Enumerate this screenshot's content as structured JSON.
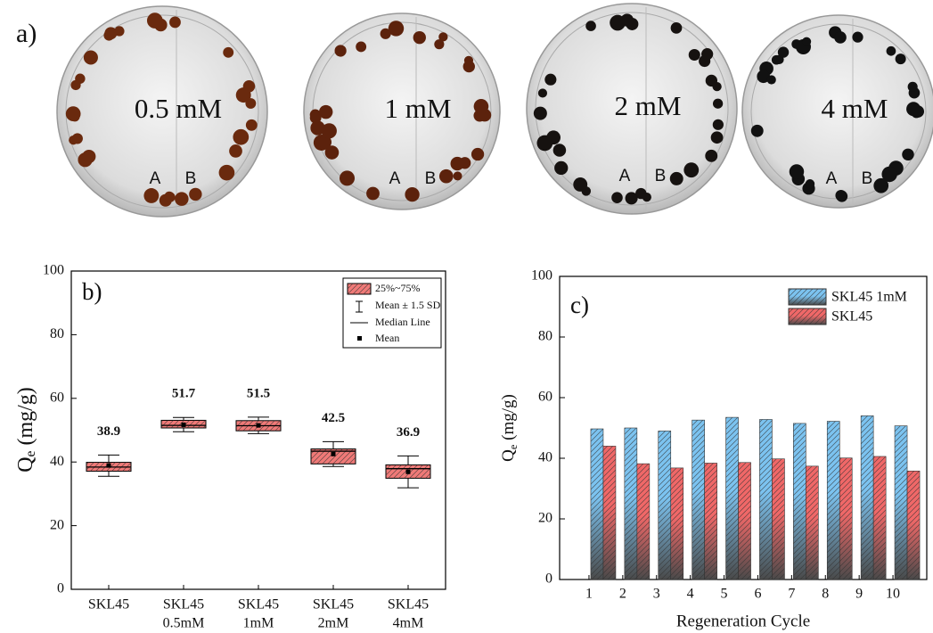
{
  "panel_a": {
    "label": "a)",
    "dishes": [
      {
        "label": "0.5 mM",
        "left": "A",
        "right": "B"
      },
      {
        "label": "1 mM",
        "left": "A",
        "right": "B"
      },
      {
        "label": "2 mM",
        "left": "A",
        "right": "B"
      },
      {
        "label": "4 mM",
        "left": "A",
        "right": "B"
      }
    ]
  },
  "chart_data": [
    {
      "type": "box",
      "panel_label": "b)",
      "y_label": {
        "main": "Q",
        "sub": "e",
        "unit": " (mg/g)"
      },
      "categories": [
        [
          "SKL45"
        ],
        [
          "SKL45",
          "0.5mM"
        ],
        [
          "SKL45",
          "1mM"
        ],
        [
          "SKL45",
          "2mM"
        ],
        [
          "SKL45",
          "4mM"
        ]
      ],
      "boxes": [
        {
          "whisker_low": 35.5,
          "q1": 37.1,
          "median": 38.4,
          "q3": 39.9,
          "whisker_high": 42.2,
          "mean": 38.9
        },
        {
          "whisker_low": 49.5,
          "q1": 50.7,
          "median": 51.5,
          "q3": 53.1,
          "whisker_high": 54.0,
          "mean": 51.7
        },
        {
          "whisker_low": 48.9,
          "q1": 49.8,
          "median": 51.4,
          "q3": 53.0,
          "whisker_high": 54.1,
          "mean": 51.5
        },
        {
          "whisker_low": 38.6,
          "q1": 39.4,
          "median": 43.4,
          "q3": 44.1,
          "whisker_high": 46.4,
          "mean": 42.5
        },
        {
          "whisker_low": 31.9,
          "q1": 34.9,
          "median": 37.9,
          "q3": 39.1,
          "whisker_high": 41.9,
          "mean": 36.9
        }
      ],
      "color": "#f07a78",
      "ylim": [
        0,
        100
      ],
      "yticks": [
        0,
        20,
        40,
        60,
        80,
        100
      ],
      "legend": {
        "position": "upper right",
        "box": "25%~75%",
        "whisker": "Mean ± 1.5 SD",
        "median": "Median Line",
        "mean": "Mean"
      }
    },
    {
      "type": "bar",
      "panel_label": "c)",
      "y_label": {
        "main": "Q",
        "sub": "e",
        "unit": " (mg/g)"
      },
      "x_label": "Regeneration Cycle",
      "categories": [
        "1",
        "2",
        "3",
        "4",
        "5",
        "6",
        "7",
        "8",
        "9",
        "10"
      ],
      "series": [
        {
          "name": "SKL45 1mM",
          "color": "#7cc3f0",
          "values": [
            49.7,
            50.0,
            49.0,
            52.6,
            53.5,
            52.8,
            51.5,
            52.2,
            54.0,
            50.7
          ]
        },
        {
          "name": "SKL45",
          "color": "#f06868",
          "values": [
            44.0,
            38.2,
            36.8,
            38.4,
            38.6,
            39.8,
            37.4,
            40.1,
            40.6,
            35.8
          ]
        }
      ],
      "ylim": [
        0,
        100
      ],
      "yticks": [
        0,
        20,
        40,
        60,
        80,
        100
      ],
      "legend": {
        "position": "upper right"
      }
    }
  ]
}
